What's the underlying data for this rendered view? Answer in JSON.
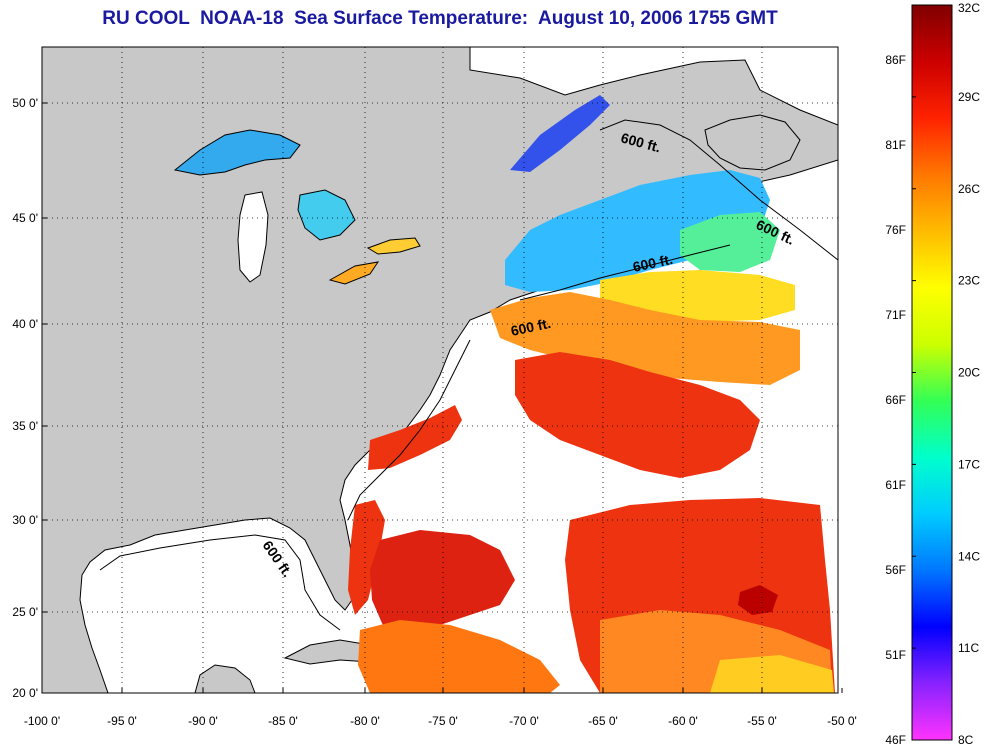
{
  "title": "RU COOL  NOAA-18  Sea Surface Temperature:  August 10, 2006 1755 GMT",
  "map": {
    "lon_labels": [
      "-100 0'",
      "-95 0'",
      "-90 0'",
      "-85 0'",
      "-80 0'",
      "-75 0'",
      "-70 0'",
      "-65 0'",
      "-60 0'",
      "-55 0'",
      "-50 0'"
    ],
    "lat_labels": [
      "50 0'",
      "45 0'",
      "40 0'",
      "35 0'",
      "30 0'",
      "25 0'",
      "20 0'"
    ],
    "contour_labels": [
      "600 ft.",
      "600 ft.",
      "600 ft.",
      "600 ft.",
      "600 ft."
    ],
    "colors": {
      "land": "#c8c8c8",
      "ocean_cloud": "#ffffff",
      "coast": "#000000"
    }
  },
  "colorbar": {
    "celsius_labels": [
      "32C",
      "29C",
      "26C",
      "23C",
      "20C",
      "17C",
      "14C",
      "11C",
      "8C"
    ],
    "fahrenheit_labels": [
      "86F",
      "81F",
      "76F",
      "71F",
      "66F",
      "61F",
      "56F",
      "51F",
      "46F"
    ],
    "range_c": [
      8,
      32
    ],
    "stops": [
      "#ff33ff",
      "#8822ff",
      "#0000ff",
      "#0077ff",
      "#00ccff",
      "#00ffcc",
      "#33ff55",
      "#ccff00",
      "#ffff00",
      "#ffbb00",
      "#ff7700",
      "#ff2200",
      "#cc0000",
      "#800000"
    ]
  }
}
